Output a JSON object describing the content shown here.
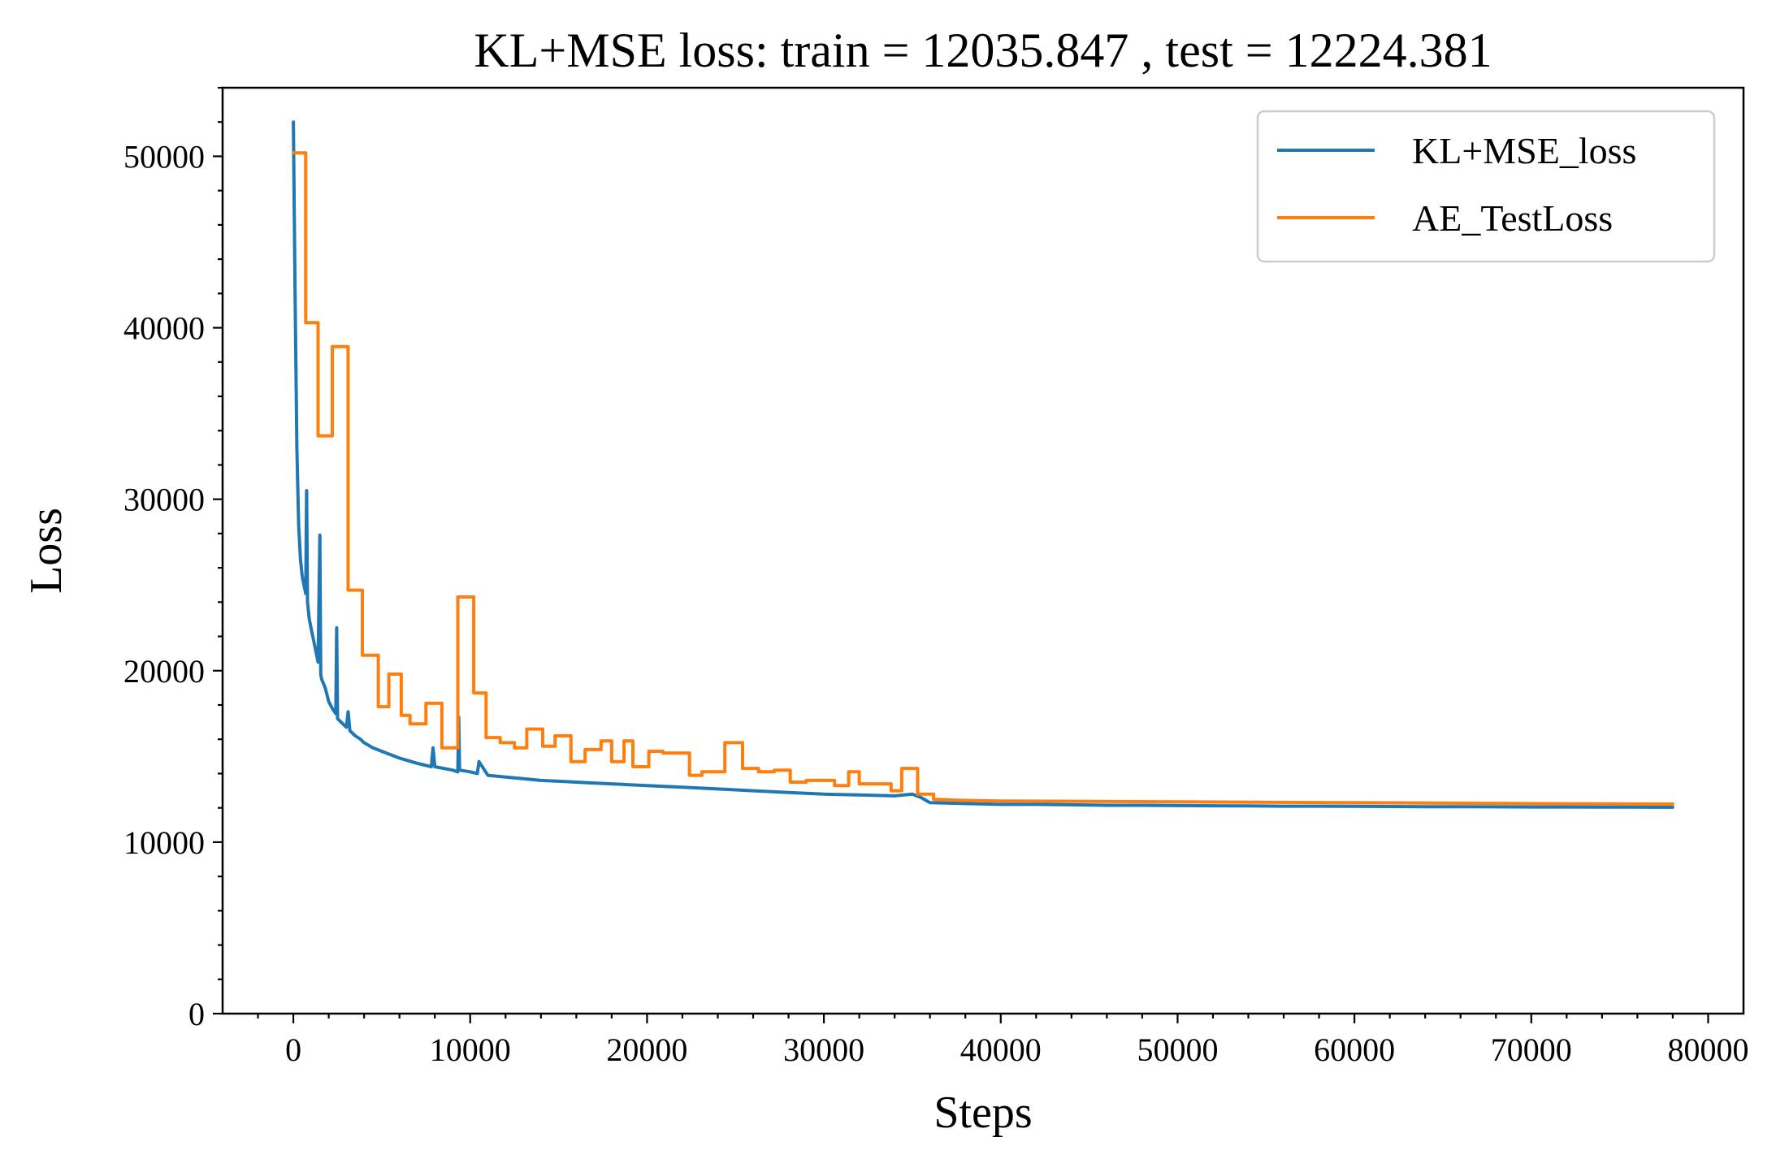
{
  "chart_data": {
    "type": "line",
    "title": "KL+MSE loss: train = 12035.847 , test = 12224.381",
    "xlabel": "Steps",
    "ylabel": "Loss",
    "xlim": [
      -4000,
      82000
    ],
    "ylim": [
      0,
      54000
    ],
    "xticks": [
      0,
      10000,
      20000,
      30000,
      40000,
      50000,
      60000,
      70000,
      80000
    ],
    "yticks": [
      0,
      10000,
      20000,
      30000,
      40000,
      50000
    ],
    "xtick_labels": [
      "0",
      "10000",
      "20000",
      "30000",
      "40000",
      "50000",
      "60000",
      "70000",
      "80000"
    ],
    "ytick_labels": [
      "0",
      "10000",
      "20000",
      "30000",
      "40000",
      "50000"
    ],
    "grid": false,
    "legend": "top-right",
    "series": [
      {
        "name": "KL+MSE_loss",
        "color": "#1f77b4",
        "x": [
          0,
          100,
          200,
          300,
          400,
          500,
          600,
          700,
          750,
          800,
          900,
          1000,
          1200,
          1400,
          1500,
          1550,
          1600,
          1800,
          2000,
          2200,
          2400,
          2450,
          2500,
          2700,
          3000,
          3100,
          3200,
          3500,
          3800,
          4000,
          4500,
          5000,
          5500,
          6000,
          7000,
          7800,
          7900,
          8000,
          9000,
          9300,
          9350,
          9400,
          10000,
          10400,
          10500,
          11000,
          12000,
          13000,
          14000,
          15000,
          16000,
          17000,
          18000,
          19000,
          20000,
          22000,
          24000,
          26000,
          28000,
          30000,
          32000,
          34000,
          35000,
          35500,
          36000,
          38000,
          40000,
          42000,
          44000,
          46000,
          48000,
          50000,
          52000,
          54000,
          56000,
          58000,
          60000,
          62000,
          64000,
          66000,
          68000,
          70000,
          72000,
          74000,
          76000,
          78000
        ],
        "values": [
          52000,
          42000,
          33000,
          28500,
          26500,
          25500,
          25000,
          24500,
          30500,
          24000,
          23000,
          22500,
          21500,
          20500,
          27900,
          19800,
          19500,
          19000,
          18200,
          17800,
          17500,
          22500,
          17200,
          17000,
          16700,
          17600,
          16500,
          16200,
          16000,
          15800,
          15500,
          15300,
          15100,
          14900,
          14600,
          14400,
          15500,
          14400,
          14200,
          14100,
          17300,
          14200,
          14100,
          14000,
          14700,
          13900,
          13800,
          13700,
          13600,
          13550,
          13500,
          13450,
          13400,
          13350,
          13300,
          13200,
          13100,
          13000,
          12900,
          12800,
          12750,
          12700,
          12800,
          12600,
          12300,
          12250,
          12200,
          12200,
          12180,
          12150,
          12150,
          12130,
          12120,
          12110,
          12100,
          12100,
          12090,
          12080,
          12070,
          12070,
          12060,
          12050,
          12050,
          12045,
          12040,
          12035
        ]
      },
      {
        "name": "AE_TestLoss",
        "color": "#ff7f0e",
        "x": [
          0,
          700,
          700,
          1400,
          1400,
          2200,
          2200,
          2900,
          2900,
          3100,
          3100,
          3900,
          3900,
          4800,
          4800,
          5400,
          5400,
          6100,
          6100,
          6600,
          6600,
          7500,
          7500,
          8400,
          8400,
          9300,
          9300,
          10200,
          10200,
          10900,
          10900,
          11700,
          11700,
          12500,
          12500,
          13200,
          13200,
          14100,
          14100,
          14800,
          14800,
          15700,
          15700,
          16500,
          16500,
          17400,
          17400,
          18000,
          18000,
          18700,
          18700,
          19200,
          19200,
          20100,
          20100,
          20900,
          20900,
          22400,
          22400,
          23100,
          23100,
          24400,
          24400,
          25400,
          25400,
          26300,
          26300,
          27200,
          27200,
          28100,
          28100,
          29000,
          29000,
          30600,
          30600,
          31400,
          31400,
          32000,
          32000,
          33800,
          33800,
          34400,
          34400,
          35300,
          35300,
          36200,
          36200,
          37500,
          40000,
          50000,
          60000,
          70000,
          78000
        ],
        "values": [
          50200,
          50200,
          40300,
          40300,
          33700,
          33700,
          38900,
          38900,
          38900,
          38900,
          24700,
          24700,
          20900,
          20900,
          17900,
          17900,
          19800,
          19800,
          17400,
          17400,
          16900,
          16900,
          18100,
          18100,
          15500,
          15500,
          24300,
          24300,
          18700,
          18700,
          16100,
          16100,
          15800,
          15800,
          15500,
          15500,
          16600,
          16600,
          15600,
          15600,
          16200,
          16200,
          14700,
          14700,
          15400,
          15400,
          15900,
          15900,
          14700,
          14700,
          15900,
          15900,
          14400,
          14400,
          15300,
          15300,
          15200,
          15200,
          13900,
          13900,
          14100,
          14100,
          15800,
          15800,
          14300,
          14300,
          14100,
          14100,
          14200,
          14200,
          13500,
          13500,
          13600,
          13600,
          13300,
          13300,
          14100,
          14100,
          13400,
          13400,
          13000,
          13000,
          14300,
          14300,
          12800,
          12800,
          12500,
          12450,
          12400,
          12350,
          12300,
          12250,
          12224
        ]
      }
    ]
  }
}
